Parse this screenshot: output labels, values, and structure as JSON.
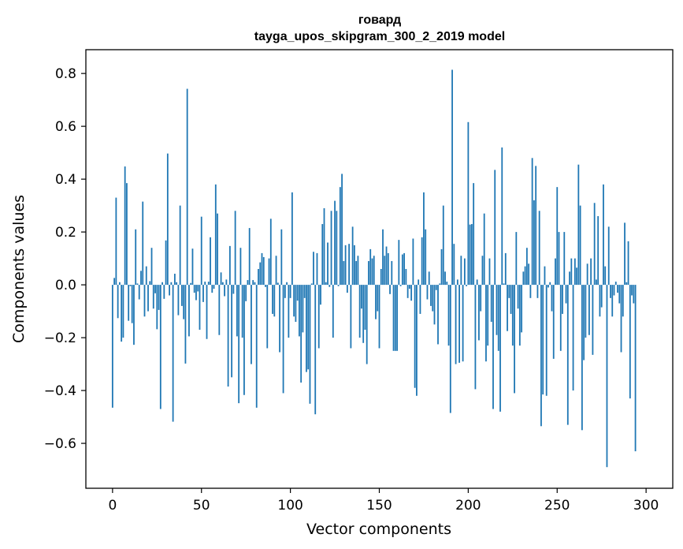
{
  "chart_data": {
    "type": "bar",
    "title": "говард",
    "subtitle": "tayga_upos_skipgram_300_2_2019 model",
    "xlabel": "Vector components",
    "ylabel": "Components values",
    "xlim": [
      -15,
      315
    ],
    "ylim": [
      -0.77,
      0.89
    ],
    "xticks": [
      0,
      50,
      100,
      150,
      200,
      250,
      300
    ],
    "xtick_labels": [
      "0",
      "50",
      "100",
      "150",
      "200",
      "250",
      "300"
    ],
    "yticks": [
      -0.6,
      -0.4,
      -0.2,
      0.0,
      0.2,
      0.4,
      0.6,
      0.8
    ],
    "ytick_labels": [
      "−0.6",
      "−0.4",
      "−0.2",
      "0.0",
      "0.2",
      "0.4",
      "0.6",
      "0.8"
    ],
    "grid": false,
    "bar_color": "#1f77b4",
    "values": [
      -0.465,
      0.026,
      0.33,
      -0.126,
      0.01,
      -0.215,
      -0.2,
      0.448,
      0.385,
      -0.136,
      -0.005,
      -0.145,
      -0.227,
      0.21,
      0.005,
      -0.055,
      0.053,
      0.315,
      -0.12,
      0.07,
      -0.1,
      0.014,
      0.14,
      -0.09,
      -0.032,
      -0.168,
      -0.095,
      -0.47,
      0.01,
      -0.053,
      0.168,
      0.497,
      -0.04,
      0.01,
      -0.518,
      0.042,
      0.01,
      -0.115,
      0.3,
      -0.08,
      -0.13,
      -0.298,
      0.742,
      -0.195,
      0.007,
      0.137,
      -0.03,
      -0.058,
      -0.025,
      -0.17,
      0.258,
      -0.065,
      0.012,
      -0.205,
      0.012,
      0.18,
      -0.03,
      -0.015,
      0.38,
      0.27,
      -0.19,
      0.047,
      0.01,
      -0.043,
      0.02,
      -0.385,
      0.147,
      -0.35,
      -0.034,
      0.28,
      -0.195,
      -0.448,
      0.14,
      -0.2,
      -0.417,
      -0.062,
      0.018,
      0.215,
      -0.3,
      0.018,
      0.01,
      -0.465,
      0.06,
      0.085,
      0.12,
      0.105,
      -0.008,
      -0.24,
      0.1,
      0.25,
      -0.11,
      -0.12,
      0.11,
      0.008,
      -0.255,
      0.21,
      -0.41,
      -0.05,
      0.01,
      -0.2,
      -0.05,
      0.35,
      -0.12,
      -0.14,
      -0.06,
      -0.195,
      -0.37,
      -0.18,
      -0.05,
      -0.33,
      -0.32,
      -0.45,
      0.005,
      0.125,
      -0.49,
      0.12,
      -0.24,
      -0.075,
      0.23,
      0.29,
      0.01,
      0.16,
      -0.008,
      0.28,
      -0.2,
      0.318,
      0.28,
      -0.005,
      0.37,
      0.42,
      0.09,
      0.15,
      -0.03,
      0.155,
      -0.24,
      0.22,
      0.15,
      0.09,
      0.11,
      -0.2,
      -0.09,
      -0.22,
      -0.17,
      -0.3,
      0.09,
      0.135,
      0.1,
      0.11,
      -0.13,
      -0.1,
      -0.24,
      0.06,
      0.21,
      0.11,
      0.145,
      0.12,
      -0.035,
      0.09,
      -0.25,
      -0.25,
      -0.25,
      0.17,
      -0.005,
      0.115,
      0.12,
      0.06,
      -0.05,
      -0.015,
      -0.06,
      0.175,
      -0.39,
      -0.42,
      0.02,
      -0.11,
      0.18,
      0.35,
      0.21,
      -0.055,
      0.05,
      -0.08,
      -0.1,
      -0.15,
      -0.02,
      -0.225,
      0.005,
      0.135,
      0.3,
      0.05,
      0.012,
      -0.23,
      -0.485,
      0.814,
      0.155,
      -0.3,
      0.02,
      -0.295,
      0.11,
      -0.29,
      0.1,
      -0.005,
      0.616,
      0.228,
      0.23,
      0.385,
      -0.395,
      0.02,
      -0.21,
      -0.1,
      0.11,
      0.27,
      -0.29,
      -0.23,
      0.1,
      -0.14,
      -0.47,
      0.435,
      -0.19,
      -0.25,
      -0.48,
      0.52,
      0.005,
      0.12,
      -0.175,
      -0.05,
      -0.11,
      -0.23,
      -0.41,
      0.2,
      -0.09,
      -0.23,
      -0.18,
      0.05,
      0.07,
      0.14,
      0.08,
      -0.05,
      0.48,
      0.32,
      0.45,
      -0.05,
      0.28,
      -0.535,
      -0.415,
      0.07,
      -0.42,
      -0.01,
      0.01,
      -0.1,
      -0.28,
      0.1,
      0.37,
      0.2,
      -0.25,
      -0.11,
      0.2,
      -0.07,
      -0.53,
      0.05,
      0.1,
      -0.4,
      0.1,
      0.065,
      0.455,
      0.3,
      -0.55,
      -0.285,
      -0.2,
      0.08,
      -0.19,
      0.1,
      -0.265,
      0.31,
      0.02,
      0.26,
      -0.12,
      -0.085,
      0.38,
      0.07,
      -0.69,
      0.22,
      -0.05,
      -0.12,
      -0.04,
      0.012,
      -0.03,
      -0.07,
      -0.255,
      -0.12,
      0.235,
      0.01,
      0.165,
      -0.43,
      -0.04,
      -0.07,
      -0.63
    ]
  }
}
